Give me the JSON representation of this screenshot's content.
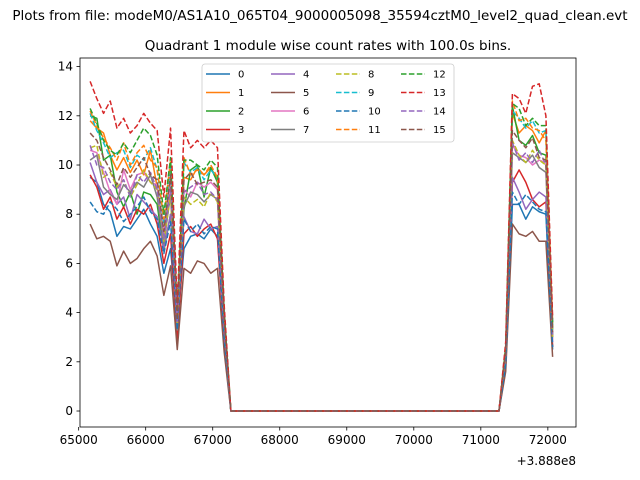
{
  "figure": {
    "suptitle": "Plots from file: modeM0/AS1A10_065T04_9000005098_35594cztM0_level2_quad_clean.evt"
  },
  "chart_data": {
    "type": "line",
    "title": "Quadrant 1 module wise count rates with 100.0s bins.",
    "xlabel": "",
    "ylabel": "",
    "x_offset_label": "+3.888e8",
    "x_offset": 388800000,
    "xlim": [
      65020,
      72420
    ],
    "ylim": [
      -0.65,
      14.35
    ],
    "xticks": [
      65000,
      66000,
      67000,
      68000,
      69000,
      70000,
      71000,
      72000
    ],
    "yticks": [
      0,
      2,
      4,
      6,
      8,
      10,
      12,
      14
    ],
    "grid": false,
    "legend": {
      "placement": "upper-center",
      "columns": 4
    },
    "x": [
      65171,
      65271,
      65371,
      65471,
      65571,
      65671,
      65771,
      65871,
      65971,
      66071,
      66171,
      66271,
      66371,
      66471,
      66571,
      66671,
      66771,
      66871,
      66971,
      67071,
      67171,
      67271,
      67371,
      67471,
      67571,
      67671,
      67771,
      67871,
      67971,
      68071,
      68171,
      68271,
      68371,
      68471,
      68571,
      68671,
      68771,
      68871,
      68971,
      69071,
      69171,
      69271,
      69371,
      69471,
      69571,
      69671,
      69771,
      69871,
      69971,
      70071,
      70171,
      70271,
      70371,
      70471,
      70571,
      70671,
      70771,
      70871,
      70971,
      71071,
      71171,
      71271,
      71371,
      71471,
      71571,
      71671,
      71771,
      71871,
      71971,
      72071
    ],
    "series": [
      {
        "name": "0",
        "color": "#1f77b4",
        "dash": "solid",
        "values": [
          9.5,
          9.3,
          8.4,
          8.1,
          7.1,
          7.5,
          7.4,
          7.8,
          8.2,
          7.6,
          7.1,
          5.6,
          6.6,
          3.5,
          6.6,
          7.1,
          7.2,
          7.0,
          7.4,
          7.1,
          3.1,
          0,
          0,
          0,
          0,
          0,
          0,
          0,
          0,
          0,
          0,
          0,
          0,
          0,
          0,
          0,
          0,
          0,
          0,
          0,
          0,
          0,
          0,
          0,
          0,
          0,
          0,
          0,
          0,
          0,
          0,
          0,
          0,
          0,
          0,
          0,
          0,
          0,
          0,
          0,
          0,
          0,
          1.8,
          8.4,
          8.4,
          7.8,
          8.3,
          8.1,
          8.0,
          2.5
        ]
      },
      {
        "name": "1",
        "color": "#ff7f0e",
        "dash": "solid",
        "values": [
          11.8,
          11.5,
          11.3,
          10.4,
          9.8,
          10.3,
          9.7,
          10.2,
          9.6,
          10.6,
          9.1,
          7.2,
          9.5,
          3.6,
          9.5,
          9.4,
          9.9,
          9.6,
          9.9,
          9.4,
          4.0,
          0,
          0,
          0,
          0,
          0,
          0,
          0,
          0,
          0,
          0,
          0,
          0,
          0,
          0,
          0,
          0,
          0,
          0,
          0,
          0,
          0,
          0,
          0,
          0,
          0,
          0,
          0,
          0,
          0,
          0,
          0,
          0,
          0,
          0,
          0,
          0,
          0,
          0,
          0,
          0,
          0,
          2.5,
          12.1,
          11.3,
          11.6,
          11.4,
          10.9,
          11.4,
          3.4
        ]
      },
      {
        "name": "2",
        "color": "#2ca02c",
        "dash": "solid",
        "values": [
          12.0,
          11.9,
          10.2,
          10.4,
          8.9,
          8.3,
          8.9,
          8.0,
          8.9,
          8.8,
          8.4,
          6.5,
          8.0,
          3.7,
          8.2,
          9.8,
          10.0,
          8.7,
          9.9,
          9.3,
          3.5,
          0,
          0,
          0,
          0,
          0,
          0,
          0,
          0,
          0,
          0,
          0,
          0,
          0,
          0,
          0,
          0,
          0,
          0,
          0,
          0,
          0,
          0,
          0,
          0,
          0,
          0,
          0,
          0,
          0,
          0,
          0,
          0,
          0,
          0,
          0,
          0,
          0,
          0,
          0,
          0,
          0,
          2.2,
          12.4,
          11.0,
          10.8,
          11.2,
          10.5,
          10.4,
          3.3
        ]
      },
      {
        "name": "3",
        "color": "#d62728",
        "dash": "solid",
        "values": [
          9.6,
          9.1,
          8.2,
          8.7,
          7.8,
          8.3,
          7.6,
          8.2,
          8.0,
          8.4,
          7.6,
          6.0,
          7.2,
          2.8,
          7.2,
          7.5,
          7.1,
          7.4,
          7.6,
          7.0,
          2.9,
          0,
          0,
          0,
          0,
          0,
          0,
          0,
          0,
          0,
          0,
          0,
          0,
          0,
          0,
          0,
          0,
          0,
          0,
          0,
          0,
          0,
          0,
          0,
          0,
          0,
          0,
          0,
          0,
          0,
          0,
          0,
          0,
          0,
          0,
          0,
          0,
          0,
          0,
          0,
          0,
          0,
          1.9,
          9.3,
          9.8,
          9.3,
          8.6,
          8.3,
          8.5,
          2.6
        ]
      },
      {
        "name": "4",
        "color": "#9467bd",
        "dash": "solid",
        "values": [
          10.1,
          9.3,
          8.8,
          9.0,
          8.4,
          8.7,
          7.8,
          8.8,
          8.5,
          8.2,
          7.9,
          6.6,
          8.0,
          3.3,
          7.9,
          7.3,
          7.2,
          7.8,
          7.4,
          7.5,
          3.2,
          0,
          0,
          0,
          0,
          0,
          0,
          0,
          0,
          0,
          0,
          0,
          0,
          0,
          0,
          0,
          0,
          0,
          0,
          0,
          0,
          0,
          0,
          0,
          0,
          0,
          0,
          0,
          0,
          0,
          0,
          0,
          0,
          0,
          0,
          0,
          0,
          0,
          0,
          0,
          0,
          0,
          2.0,
          9.5,
          8.9,
          8.2,
          8.6,
          8.9,
          8.7,
          2.8
        ]
      },
      {
        "name": "5",
        "color": "#8c564b",
        "dash": "solid",
        "values": [
          7.6,
          7.0,
          7.1,
          6.9,
          5.9,
          6.5,
          6.0,
          6.2,
          6.6,
          6.9,
          6.3,
          4.7,
          5.9,
          2.5,
          5.8,
          5.6,
          6.1,
          6.0,
          5.6,
          5.8,
          2.4,
          0,
          0,
          0,
          0,
          0,
          0,
          0,
          0,
          0,
          0,
          0,
          0,
          0,
          0,
          0,
          0,
          0,
          0,
          0,
          0,
          0,
          0,
          0,
          0,
          0,
          0,
          0,
          0,
          0,
          0,
          0,
          0,
          0,
          0,
          0,
          0,
          0,
          0,
          0,
          0,
          0,
          1.6,
          7.6,
          7.2,
          7.1,
          7.3,
          6.9,
          6.9,
          2.2
        ]
      },
      {
        "name": "6",
        "color": "#e377c2",
        "dash": "solid",
        "values": [
          10.6,
          10.5,
          9.7,
          8.9,
          8.4,
          9.8,
          9.0,
          9.6,
          9.7,
          9.3,
          9.2,
          7.1,
          9.2,
          3.5,
          9.0,
          8.7,
          9.3,
          9.1,
          9.3,
          9.0,
          3.6,
          0,
          0,
          0,
          0,
          0,
          0,
          0,
          0,
          0,
          0,
          0,
          0,
          0,
          0,
          0,
          0,
          0,
          0,
          0,
          0,
          0,
          0,
          0,
          0,
          0,
          0,
          0,
          0,
          0,
          0,
          0,
          0,
          0,
          0,
          0,
          0,
          0,
          0,
          0,
          0,
          0,
          2.2,
          10.8,
          10.4,
          10.3,
          10.0,
          10.2,
          10.1,
          2.9
        ]
      },
      {
        "name": "7",
        "color": "#7f7f7f",
        "dash": "solid",
        "values": [
          10.2,
          10.4,
          9.1,
          8.8,
          8.6,
          9.2,
          8.9,
          9.3,
          9.1,
          9.6,
          8.7,
          6.8,
          8.8,
          3.3,
          8.3,
          8.9,
          8.8,
          8.5,
          8.8,
          8.6,
          3.5,
          0,
          0,
          0,
          0,
          0,
          0,
          0,
          0,
          0,
          0,
          0,
          0,
          0,
          0,
          0,
          0,
          0,
          0,
          0,
          0,
          0,
          0,
          0,
          0,
          0,
          0,
          0,
          0,
          0,
          0,
          0,
          0,
          0,
          0,
          0,
          0,
          0,
          0,
          0,
          0,
          0,
          2.1,
          10.5,
          10.3,
          10.1,
          10.4,
          9.9,
          9.7,
          3.0
        ]
      },
      {
        "name": "8",
        "color": "#bcbd22",
        "dash": "dashed",
        "values": [
          10.7,
          10.8,
          9.5,
          9.7,
          9.1,
          9.4,
          8.7,
          9.2,
          9.8,
          9.3,
          9.0,
          6.9,
          8.8,
          3.6,
          8.7,
          8.4,
          8.6,
          8.3,
          8.9,
          8.5,
          3.4,
          0,
          0,
          0,
          0,
          0,
          0,
          0,
          0,
          0,
          0,
          0,
          0,
          0,
          0,
          0,
          0,
          0,
          0,
          0,
          0,
          0,
          0,
          0,
          0,
          0,
          0,
          0,
          0,
          0,
          0,
          0,
          0,
          0,
          0,
          0,
          0,
          0,
          0,
          0,
          0,
          0,
          2.2,
          11.0,
          10.4,
          10.1,
          10.6,
          10.2,
          10.0,
          3.0
        ]
      },
      {
        "name": "9",
        "color": "#17becf",
        "dash": "dashed",
        "values": [
          12.1,
          11.4,
          10.9,
          10.3,
          10.5,
          10.6,
          9.9,
          10.4,
          10.2,
          10.7,
          9.8,
          7.6,
          9.9,
          3.9,
          10.1,
          9.7,
          9.9,
          9.4,
          9.8,
          9.5,
          4.0,
          0,
          0,
          0,
          0,
          0,
          0,
          0,
          0,
          0,
          0,
          0,
          0,
          0,
          0,
          0,
          0,
          0,
          0,
          0,
          0,
          0,
          0,
          0,
          0,
          0,
          0,
          0,
          0,
          0,
          0,
          0,
          0,
          0,
          0,
          0,
          0,
          0,
          0,
          0,
          0,
          0,
          2.5,
          12.2,
          11.9,
          11.5,
          11.8,
          11.3,
          11.4,
          3.5
        ]
      },
      {
        "name": "10",
        "color": "#1f77b4",
        "dash": "dashed",
        "values": [
          8.5,
          8.1,
          8.0,
          8.5,
          8.2,
          7.7,
          8.0,
          8.3,
          8.7,
          8.1,
          7.8,
          6.4,
          7.7,
          3.3,
          7.8,
          7.3,
          7.6,
          7.2,
          7.5,
          7.4,
          3.0,
          0,
          0,
          0,
          0,
          0,
          0,
          0,
          0,
          0,
          0,
          0,
          0,
          0,
          0,
          0,
          0,
          0,
          0,
          0,
          0,
          0,
          0,
          0,
          0,
          0,
          0,
          0,
          0,
          0,
          0,
          0,
          0,
          0,
          0,
          0,
          0,
          0,
          0,
          0,
          0,
          0,
          1.9,
          8.9,
          8.4,
          8.8,
          8.5,
          8.2,
          8.1,
          2.6
        ]
      },
      {
        "name": "11",
        "color": "#ff7f0e",
        "dash": "dashed",
        "values": [
          12.2,
          11.6,
          11.1,
          10.7,
          10.2,
          10.9,
          10.0,
          10.5,
          10.8,
          10.2,
          9.9,
          7.8,
          10.2,
          3.8,
          10.3,
          9.6,
          9.8,
          9.6,
          10.0,
          9.5,
          3.9,
          0,
          0,
          0,
          0,
          0,
          0,
          0,
          0,
          0,
          0,
          0,
          0,
          0,
          0,
          0,
          0,
          0,
          0,
          0,
          0,
          0,
          0,
          0,
          0,
          0,
          0,
          0,
          0,
          0,
          0,
          0,
          0,
          0,
          0,
          0,
          0,
          0,
          0,
          0,
          0,
          0,
          2.6,
          12.6,
          11.8,
          11.9,
          11.5,
          11.4,
          11.0,
          3.6
        ]
      },
      {
        "name": "12",
        "color": "#2ca02c",
        "dash": "dashed",
        "values": [
          12.3,
          11.7,
          11.0,
          10.6,
          10.4,
          10.9,
          10.5,
          11.0,
          11.5,
          11.2,
          10.4,
          8.0,
          10.3,
          4.0,
          10.2,
          10.2,
          10.0,
          9.8,
          10.2,
          9.9,
          4.0,
          0,
          0,
          0,
          0,
          0,
          0,
          0,
          0,
          0,
          0,
          0,
          0,
          0,
          0,
          0,
          0,
          0,
          0,
          0,
          0,
          0,
          0,
          0,
          0,
          0,
          0,
          0,
          0,
          0,
          0,
          0,
          0,
          0,
          0,
          0,
          0,
          0,
          0,
          0,
          0,
          0,
          2.6,
          12.5,
          12.3,
          11.6,
          11.9,
          11.6,
          11.6,
          3.6
        ]
      },
      {
        "name": "13",
        "color": "#d62728",
        "dash": "dashed",
        "values": [
          13.4,
          12.7,
          12.1,
          12.6,
          11.5,
          11.9,
          11.3,
          11.6,
          12.1,
          11.7,
          11.4,
          8.7,
          11.5,
          4.3,
          11.4,
          10.7,
          11.0,
          10.7,
          11.0,
          10.7,
          4.3,
          0,
          0,
          0,
          0,
          0,
          0,
          0,
          0,
          0,
          0,
          0,
          0,
          0,
          0,
          0,
          0,
          0,
          0,
          0,
          0,
          0,
          0,
          0,
          0,
          0,
          0,
          0,
          0,
          0,
          0,
          0,
          0,
          0,
          0,
          0,
          0,
          0,
          0,
          0,
          0,
          0,
          2.8,
          12.9,
          12.7,
          12.1,
          13.2,
          13.3,
          12.0,
          3.8
        ]
      },
      {
        "name": "14",
        "color": "#9467bd",
        "dash": "dashed",
        "values": [
          10.8,
          10.0,
          9.9,
          9.3,
          9.0,
          9.4,
          8.7,
          9.6,
          9.3,
          9.7,
          9.0,
          7.0,
          9.1,
          3.6,
          8.9,
          9.1,
          9.3,
          8.8,
          8.9,
          8.6,
          3.4,
          0,
          0,
          0,
          0,
          0,
          0,
          0,
          0,
          0,
          0,
          0,
          0,
          0,
          0,
          0,
          0,
          0,
          0,
          0,
          0,
          0,
          0,
          0,
          0,
          0,
          0,
          0,
          0,
          0,
          0,
          0,
          0,
          0,
          0,
          0,
          0,
          0,
          0,
          0,
          0,
          0,
          2.3,
          10.9,
          10.2,
          10.5,
          10.1,
          10.6,
          10.0,
          3.1
        ]
      },
      {
        "name": "15",
        "color": "#8c564b",
        "dash": "dashed",
        "values": [
          11.3,
          11.0,
          10.3,
          9.8,
          9.2,
          9.9,
          9.5,
          9.9,
          10.3,
          9.6,
          9.4,
          7.3,
          9.6,
          3.7,
          9.4,
          9.7,
          9.2,
          9.3,
          9.4,
          9.1,
          3.7,
          0,
          0,
          0,
          0,
          0,
          0,
          0,
          0,
          0,
          0,
          0,
          0,
          0,
          0,
          0,
          0,
          0,
          0,
          0,
          0,
          0,
          0,
          0,
          0,
          0,
          0,
          0,
          0,
          0,
          0,
          0,
          0,
          0,
          0,
          0,
          0,
          0,
          0,
          0,
          0,
          0,
          2.4,
          11.4,
          11.0,
          10.7,
          11.1,
          10.3,
          10.2,
          3.2
        ]
      }
    ]
  }
}
